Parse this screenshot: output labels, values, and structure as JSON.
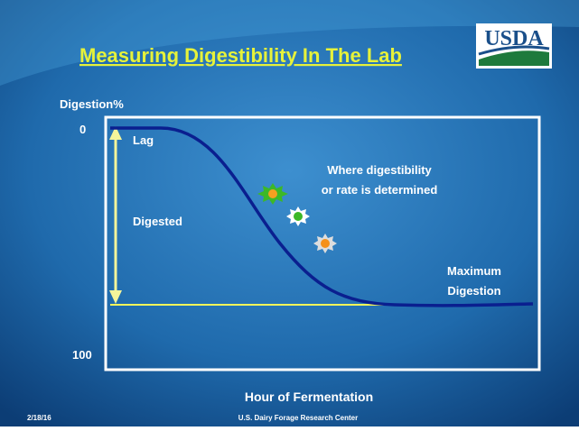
{
  "header": {
    "title": "Measuring Digestibility In The Lab",
    "logo": "USDA"
  },
  "diagram": {
    "y_axis_label": "Digestion%",
    "y_top": 0,
    "y_bottom": 100,
    "x_axis_label": "Hour of Fermentation",
    "annotations": {
      "lag": "Lag",
      "digested": "Digested",
      "where": [
        "Where digestibility",
        "or rate is determined"
      ],
      "maximum": [
        "Maximum",
        "Digestion"
      ]
    }
  },
  "footer": {
    "date": "2/18/16",
    "center": "U.S. Dairy Forage Research Center"
  }
}
